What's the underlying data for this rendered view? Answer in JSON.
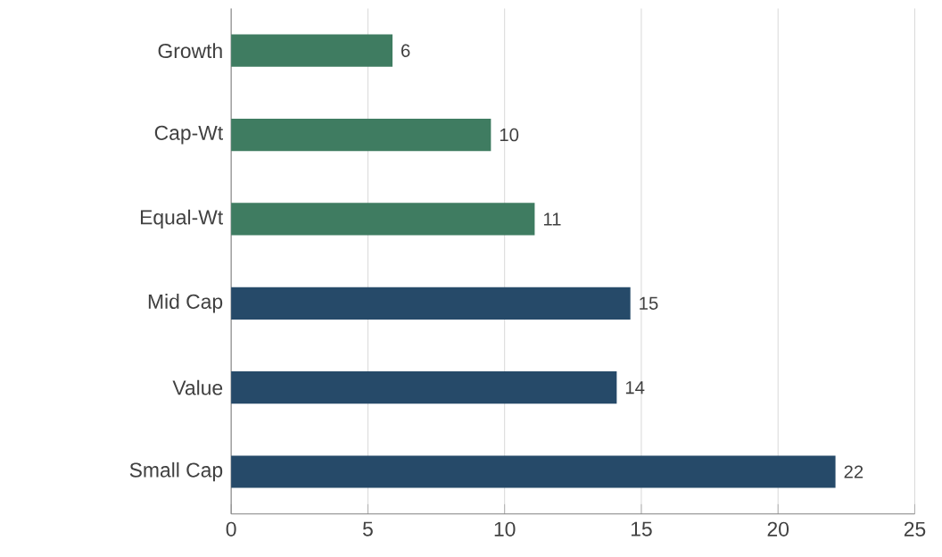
{
  "chart_data": {
    "type": "bar",
    "orientation": "horizontal",
    "categories": [
      "Growth",
      "Cap-Wt",
      "Equal-Wt",
      "Mid Cap",
      "Value",
      "Small Cap"
    ],
    "values": [
      5.9,
      9.5,
      11.1,
      14.6,
      14.1,
      22.1
    ],
    "value_labels": [
      "6",
      "10",
      "11",
      "15",
      "14",
      "22"
    ],
    "colors": [
      "#3f7c61",
      "#3f7c61",
      "#3f7c61",
      "#264a69",
      "#264a69",
      "#264a69"
    ],
    "xlim": [
      0,
      25
    ],
    "xticks": [
      0,
      5,
      10,
      15,
      20,
      25
    ],
    "grid": "x"
  }
}
